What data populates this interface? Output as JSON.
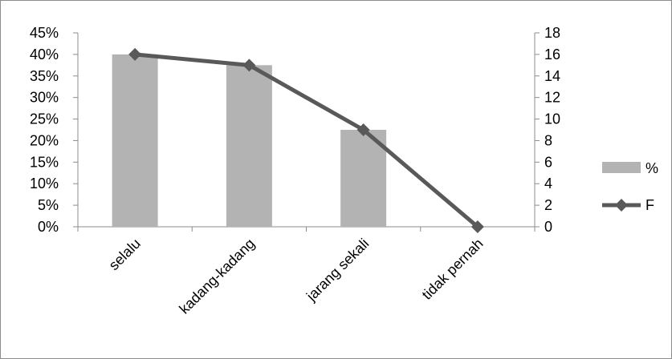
{
  "chart_data": {
    "type": "bar",
    "categories": [
      "selalu",
      "kadang-kadang",
      "jarang sekali",
      "tidak pernah"
    ],
    "series": [
      {
        "name": "%",
        "type": "bar",
        "axis": "left",
        "values": [
          0.4,
          0.375,
          0.225,
          0.0
        ],
        "color": "#b3b3b3"
      },
      {
        "name": "F",
        "type": "line",
        "axis": "right",
        "values": [
          16,
          15,
          9,
          0
        ],
        "color": "#595959",
        "marker": "diamond"
      }
    ],
    "left_axis": {
      "min": 0,
      "max": 0.45,
      "step": 0.05,
      "tick_labels": [
        "0%",
        "5%",
        "10%",
        "15%",
        "20%",
        "25%",
        "30%",
        "35%",
        "40%",
        "45%"
      ]
    },
    "right_axis": {
      "min": 0,
      "max": 18,
      "step": 2,
      "tick_labels": [
        "0",
        "2",
        "4",
        "6",
        "8",
        "10",
        "12",
        "14",
        "16",
        "18"
      ]
    },
    "grid": false,
    "legend": {
      "position": "right",
      "entries": [
        "%",
        "F"
      ]
    }
  }
}
